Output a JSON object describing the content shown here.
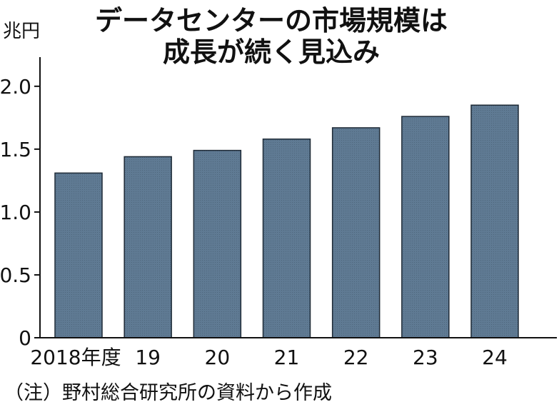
{
  "chart_data": {
    "type": "bar",
    "title": [
      "データセンターの市場規模は",
      "成長が続く見込み"
    ],
    "unit": "兆円",
    "categories": [
      "2018年度",
      "19",
      "20",
      "21",
      "22",
      "23",
      "24"
    ],
    "values": [
      1.31,
      1.44,
      1.49,
      1.58,
      1.67,
      1.76,
      1.85
    ],
    "ylim": [
      0,
      2.3
    ],
    "yticks": [
      0,
      0.5,
      1.0,
      1.5,
      2.0
    ],
    "ytick_labels": [
      "0",
      "0.5",
      "1.0",
      "1.5",
      "2.0"
    ],
    "bar_color": "#5f7a93",
    "bar_edge_color": "#1e2a36",
    "grid": false
  },
  "note": "（注）野村総合研究所の資料から作成"
}
